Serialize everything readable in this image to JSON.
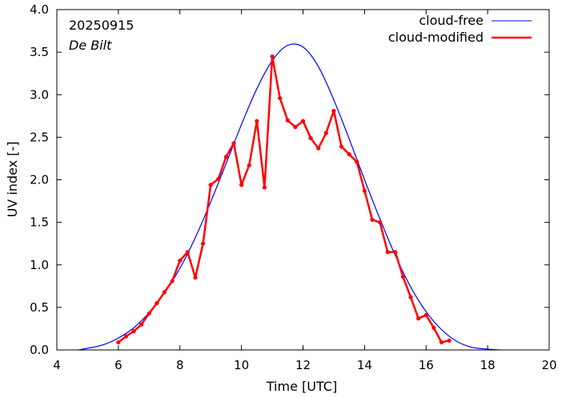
{
  "chart_data": {
    "type": "line",
    "xlabel": "Time  [UTC]",
    "ylabel": "UV index  [-]",
    "xlim": [
      4,
      20
    ],
    "ylim": [
      0,
      4.0
    ],
    "xticks": [
      "4",
      "6",
      "8",
      "10",
      "12",
      "14",
      "16",
      "18",
      "20"
    ],
    "yticks": [
      "0.0",
      "0.5",
      "1.0",
      "1.5",
      "2.0",
      "2.5",
      "3.0",
      "3.5",
      "4.0"
    ],
    "annotations": {
      "date": "20250915",
      "location": "De Bilt"
    },
    "legend_position": "top-right",
    "colors": {
      "cloud_free": "#0000ff",
      "cloud_modified": "#ff0000"
    },
    "series": [
      {
        "name": "cloud-free",
        "style": "line",
        "x": [
          4.7,
          5.0,
          5.5,
          6.0,
          6.5,
          7.0,
          7.5,
          8.0,
          8.5,
          9.0,
          9.5,
          10.0,
          10.5,
          11.0,
          11.5,
          12.0,
          12.5,
          13.0,
          13.5,
          14.0,
          14.5,
          15.0,
          15.5,
          16.0,
          16.5,
          17.0,
          17.5,
          18.0,
          18.4
        ],
        "y": [
          0.0,
          0.02,
          0.06,
          0.14,
          0.26,
          0.44,
          0.67,
          0.96,
          1.32,
          1.74,
          2.19,
          2.65,
          3.07,
          3.4,
          3.58,
          3.56,
          3.33,
          2.94,
          2.48,
          2.0,
          1.54,
          1.11,
          0.74,
          0.45,
          0.24,
          0.1,
          0.03,
          0.01,
          0.0
        ]
      },
      {
        "name": "cloud-modified",
        "style": "linespoints",
        "x": [
          6.0,
          6.25,
          6.5,
          6.75,
          7.0,
          7.25,
          7.5,
          7.75,
          8.0,
          8.25,
          8.5,
          8.75,
          9.0,
          9.25,
          9.5,
          9.75,
          10.0,
          10.25,
          10.5,
          10.75,
          11.0,
          11.25,
          11.5,
          11.75,
          12.0,
          12.25,
          12.5,
          12.75,
          13.0,
          13.25,
          13.5,
          13.75,
          14.0,
          14.25,
          14.5,
          14.75,
          15.0,
          15.25,
          15.5,
          15.75,
          16.0,
          16.25,
          16.5,
          16.75
        ],
        "y": [
          0.09,
          0.16,
          0.22,
          0.3,
          0.43,
          0.55,
          0.68,
          0.81,
          1.05,
          1.15,
          0.85,
          1.25,
          1.94,
          2.01,
          2.27,
          2.43,
          1.94,
          2.17,
          2.69,
          1.91,
          3.45,
          2.96,
          2.7,
          2.62,
          2.69,
          2.49,
          2.37,
          2.55,
          2.81,
          2.39,
          2.3,
          2.21,
          1.87,
          1.53,
          1.5,
          1.15,
          1.15,
          0.86,
          0.62,
          0.37,
          0.41,
          0.26,
          0.09,
          0.11
        ]
      }
    ]
  }
}
